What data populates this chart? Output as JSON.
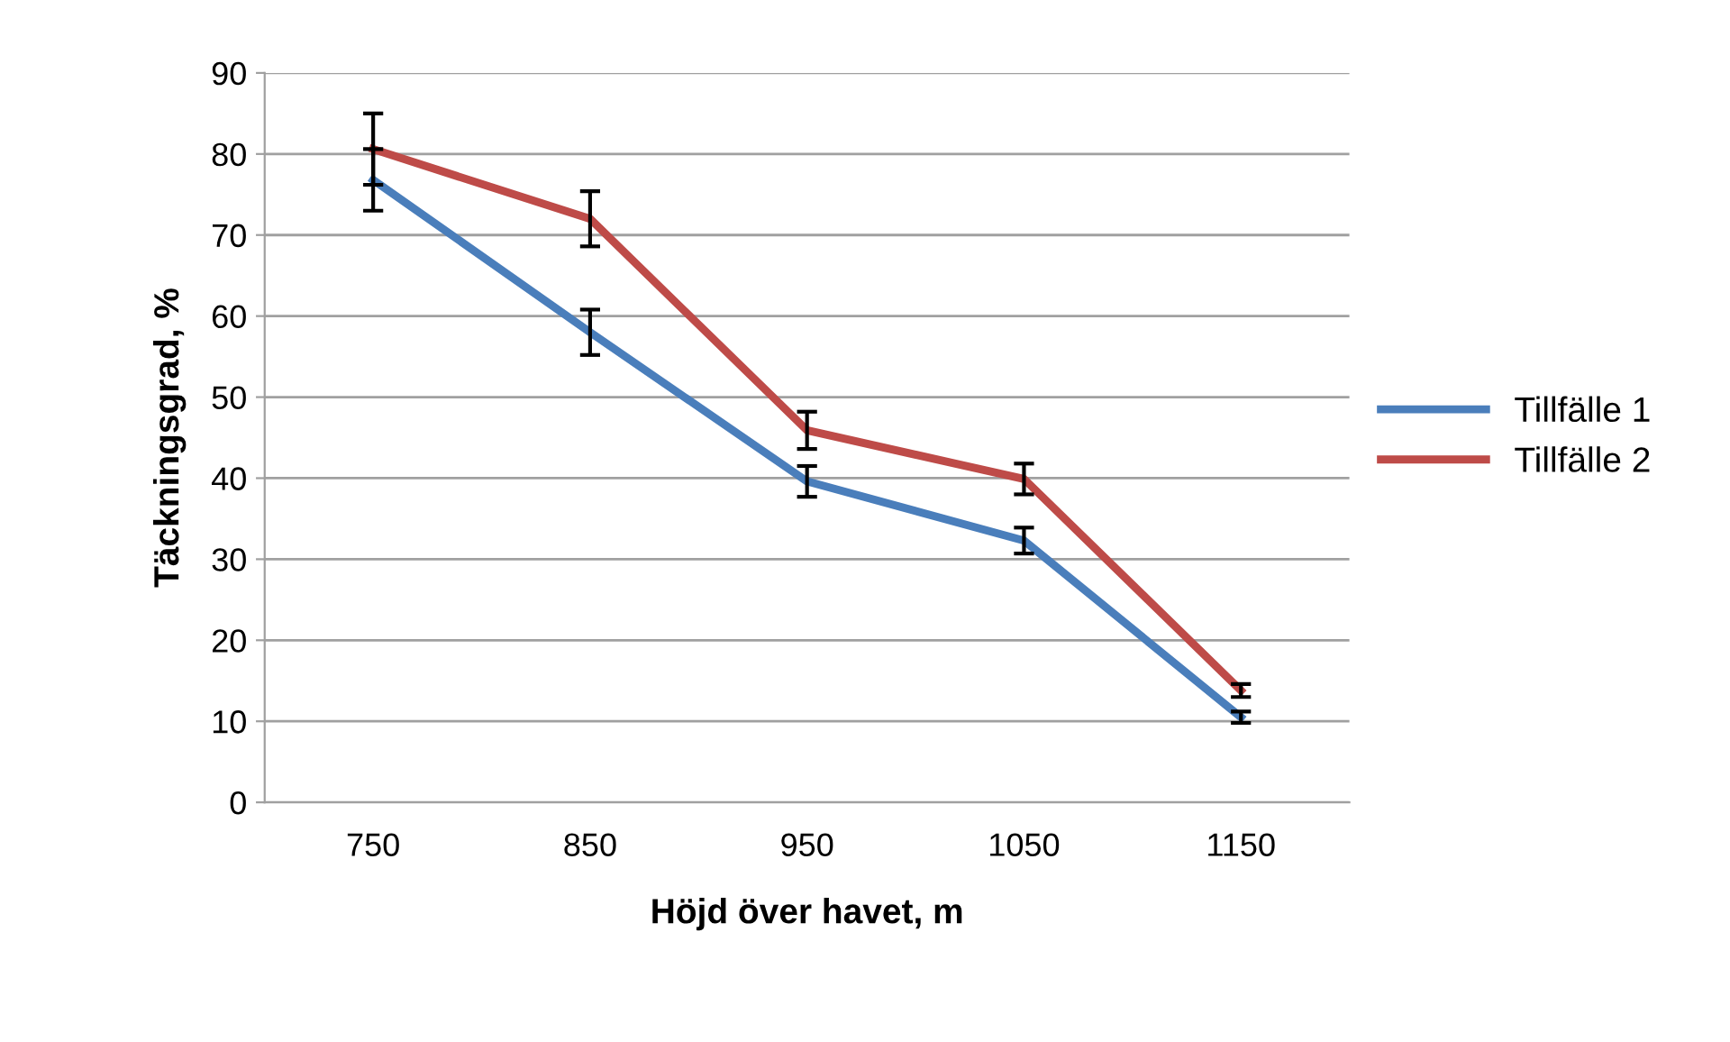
{
  "chart_data": {
    "type": "line",
    "xlabel": "Höjd över havet, m",
    "ylabel": "Täckningsgrad, %",
    "categories": [
      "750",
      "850",
      "950",
      "1050",
      "1150"
    ],
    "series": [
      {
        "name": "Tillfälle 1",
        "color": "#4a7ebb",
        "values": [
          76.8,
          58,
          39.6,
          32.3,
          10.5
        ],
        "errors": [
          3.8,
          2.8,
          1.9,
          1.6,
          0.7
        ]
      },
      {
        "name": "Tillfälle 2",
        "color": "#be4b48",
        "values": [
          80.6,
          72,
          45.9,
          39.9,
          13.8
        ],
        "errors": [
          4.4,
          3.4,
          2.3,
          1.9,
          0.8
        ]
      }
    ],
    "ylim": [
      0,
      90
    ],
    "yticks": [
      0,
      10,
      20,
      30,
      40,
      50,
      60,
      70,
      80,
      90
    ],
    "grid": "y",
    "legend": "right",
    "marker": "none",
    "line_style": "solid"
  }
}
